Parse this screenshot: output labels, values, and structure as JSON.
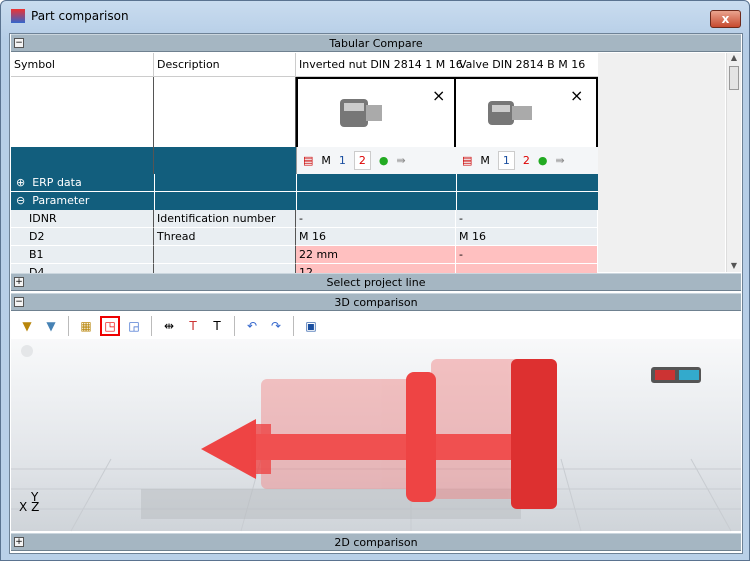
{
  "window": {
    "title": "Part comparison",
    "close_label": "x"
  },
  "panels": {
    "tabular": "Tabular Compare",
    "project": "Select project line",
    "comparison3d": "3D comparison",
    "comparison2d": "2D comparison"
  },
  "table": {
    "headers": [
      "Symbol",
      "Description",
      "Inverted nut DIN 2814 1 M 16",
      "Valve DIN 2814 B M 16"
    ],
    "part_toolbar": {
      "m": "M",
      "one": "1",
      "two": "2"
    },
    "groups": [
      {
        "label": "ERP data",
        "state": "collapsed"
      },
      {
        "label": "Parameter",
        "state": "expanded"
      }
    ],
    "rows": [
      {
        "symbol": "IDNR",
        "description": "Identification number",
        "a": "-",
        "b": "-",
        "diff": false
      },
      {
        "symbol": "D2",
        "description": "Thread",
        "a": "M 16",
        "b": "M 16",
        "diff": false
      },
      {
        "symbol": "B1",
        "description": "",
        "a": "22 mm",
        "b": "-",
        "diff": true
      },
      {
        "symbol": "D4",
        "description": "",
        "a": "12",
        "b": "",
        "diff": true
      }
    ]
  },
  "axes": {
    "y": "Y",
    "x": "X",
    "z": "Z"
  },
  "colors": {
    "teal": "#125e7d",
    "diff": "#ffc0c0",
    "highlight": "#e00000"
  }
}
